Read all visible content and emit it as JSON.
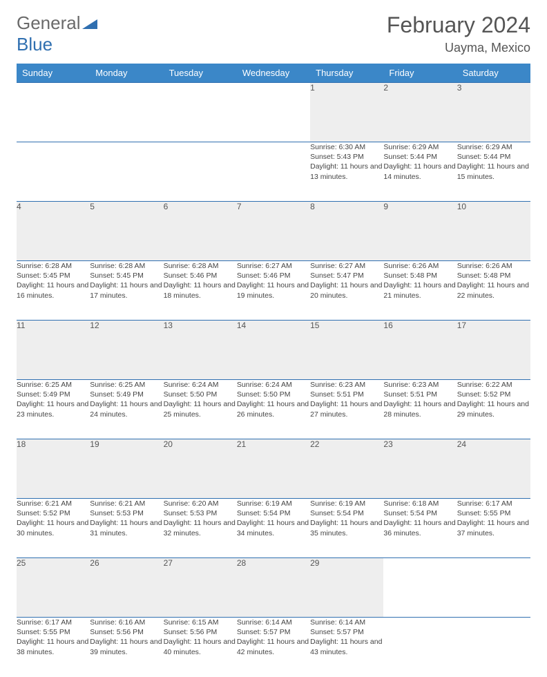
{
  "brand": {
    "part1": "General",
    "part2": "Blue"
  },
  "title": "February 2024",
  "location": "Uayma, Mexico",
  "colors": {
    "header_bg": "#3b87c8",
    "header_text": "#ffffff",
    "row_border": "#2f6fb0",
    "daynum_bg": "#eeeeee",
    "text": "#444444",
    "title_color": "#555555",
    "logo_gray": "#6a6a6a",
    "logo_blue": "#2f6fb0"
  },
  "day_headers": [
    "Sunday",
    "Monday",
    "Tuesday",
    "Wednesday",
    "Thursday",
    "Friday",
    "Saturday"
  ],
  "weeks": [
    [
      null,
      null,
      null,
      null,
      {
        "n": "1",
        "sr": "6:30 AM",
        "ss": "5:43 PM",
        "dl": "11 hours and 13 minutes."
      },
      {
        "n": "2",
        "sr": "6:29 AM",
        "ss": "5:44 PM",
        "dl": "11 hours and 14 minutes."
      },
      {
        "n": "3",
        "sr": "6:29 AM",
        "ss": "5:44 PM",
        "dl": "11 hours and 15 minutes."
      }
    ],
    [
      {
        "n": "4",
        "sr": "6:28 AM",
        "ss": "5:45 PM",
        "dl": "11 hours and 16 minutes."
      },
      {
        "n": "5",
        "sr": "6:28 AM",
        "ss": "5:45 PM",
        "dl": "11 hours and 17 minutes."
      },
      {
        "n": "6",
        "sr": "6:28 AM",
        "ss": "5:46 PM",
        "dl": "11 hours and 18 minutes."
      },
      {
        "n": "7",
        "sr": "6:27 AM",
        "ss": "5:46 PM",
        "dl": "11 hours and 19 minutes."
      },
      {
        "n": "8",
        "sr": "6:27 AM",
        "ss": "5:47 PM",
        "dl": "11 hours and 20 minutes."
      },
      {
        "n": "9",
        "sr": "6:26 AM",
        "ss": "5:48 PM",
        "dl": "11 hours and 21 minutes."
      },
      {
        "n": "10",
        "sr": "6:26 AM",
        "ss": "5:48 PM",
        "dl": "11 hours and 22 minutes."
      }
    ],
    [
      {
        "n": "11",
        "sr": "6:25 AM",
        "ss": "5:49 PM",
        "dl": "11 hours and 23 minutes."
      },
      {
        "n": "12",
        "sr": "6:25 AM",
        "ss": "5:49 PM",
        "dl": "11 hours and 24 minutes."
      },
      {
        "n": "13",
        "sr": "6:24 AM",
        "ss": "5:50 PM",
        "dl": "11 hours and 25 minutes."
      },
      {
        "n": "14",
        "sr": "6:24 AM",
        "ss": "5:50 PM",
        "dl": "11 hours and 26 minutes."
      },
      {
        "n": "15",
        "sr": "6:23 AM",
        "ss": "5:51 PM",
        "dl": "11 hours and 27 minutes."
      },
      {
        "n": "16",
        "sr": "6:23 AM",
        "ss": "5:51 PM",
        "dl": "11 hours and 28 minutes."
      },
      {
        "n": "17",
        "sr": "6:22 AM",
        "ss": "5:52 PM",
        "dl": "11 hours and 29 minutes."
      }
    ],
    [
      {
        "n": "18",
        "sr": "6:21 AM",
        "ss": "5:52 PM",
        "dl": "11 hours and 30 minutes."
      },
      {
        "n": "19",
        "sr": "6:21 AM",
        "ss": "5:53 PM",
        "dl": "11 hours and 31 minutes."
      },
      {
        "n": "20",
        "sr": "6:20 AM",
        "ss": "5:53 PM",
        "dl": "11 hours and 32 minutes."
      },
      {
        "n": "21",
        "sr": "6:19 AM",
        "ss": "5:54 PM",
        "dl": "11 hours and 34 minutes."
      },
      {
        "n": "22",
        "sr": "6:19 AM",
        "ss": "5:54 PM",
        "dl": "11 hours and 35 minutes."
      },
      {
        "n": "23",
        "sr": "6:18 AM",
        "ss": "5:54 PM",
        "dl": "11 hours and 36 minutes."
      },
      {
        "n": "24",
        "sr": "6:17 AM",
        "ss": "5:55 PM",
        "dl": "11 hours and 37 minutes."
      }
    ],
    [
      {
        "n": "25",
        "sr": "6:17 AM",
        "ss": "5:55 PM",
        "dl": "11 hours and 38 minutes."
      },
      {
        "n": "26",
        "sr": "6:16 AM",
        "ss": "5:56 PM",
        "dl": "11 hours and 39 minutes."
      },
      {
        "n": "27",
        "sr": "6:15 AM",
        "ss": "5:56 PM",
        "dl": "11 hours and 40 minutes."
      },
      {
        "n": "28",
        "sr": "6:14 AM",
        "ss": "5:57 PM",
        "dl": "11 hours and 42 minutes."
      },
      {
        "n": "29",
        "sr": "6:14 AM",
        "ss": "5:57 PM",
        "dl": "11 hours and 43 minutes."
      },
      null,
      null
    ]
  ],
  "labels": {
    "sunrise": "Sunrise: ",
    "sunset": "Sunset: ",
    "daylight": "Daylight: "
  }
}
